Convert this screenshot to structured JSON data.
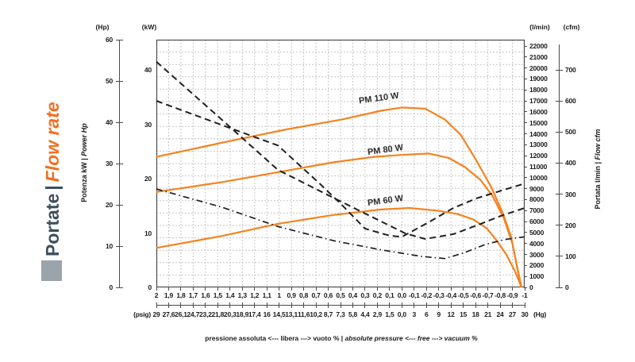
{
  "sidebar": {
    "title_it": "Portate",
    "separator": "|",
    "title_en": "Flow rate",
    "title_it_color": "#3E4F5C",
    "title_en_color": "#F26F21",
    "square_color": "#9CA4AB"
  },
  "axes": {
    "left_hp": {
      "header": "(Hp)",
      "labels": [
        "60",
        "50",
        "40",
        "30",
        "20",
        "10",
        "0"
      ]
    },
    "left_kw": {
      "header": "(kW)",
      "labels": [
        "40",
        "30",
        "20",
        "10",
        "0"
      ]
    },
    "right_lmin": {
      "header": "(l/min)",
      "labels": [
        "22000",
        "21000",
        "20000",
        "19000",
        "18000",
        "17000",
        "16000",
        "15000",
        "14000",
        "13000",
        "12000",
        "11000",
        "10000",
        "9000",
        "8000",
        "7000",
        "6000",
        "5000",
        "4000",
        "3000",
        "2000",
        "1000",
        "0"
      ]
    },
    "right_cfm": {
      "header": "(cfm)",
      "labels": [
        "700",
        "600",
        "500",
        "400",
        "300",
        "200",
        "100",
        "0"
      ]
    },
    "left_title": {
      "normal": "Potenza kW",
      "sep": " | ",
      "italic": "Power Hp"
    },
    "right_title": {
      "normal": "Portata l/min",
      "sep": " | ",
      "italic": "Flow cfm"
    },
    "x_row1_labels": [
      "2",
      "1,9",
      "1,8",
      "1,7",
      "1,6",
      "1,5",
      "1,4",
      "1,3",
      "1,2",
      "1,1",
      "1",
      "0,9",
      "0,8",
      "0,7",
      "0,6",
      "0,5",
      "0,4",
      "0,3",
      "0,2",
      "0,1",
      "0,0",
      "-0,1",
      "-0,2",
      "-0,3",
      "-0,4",
      "-0,5",
      "-0,6",
      "-0,7",
      "-0,8",
      "-0,9",
      "-1"
    ],
    "x_row2_labels": [
      "29",
      "27,6",
      "26,1",
      "24,7",
      "23,2",
      "21,8",
      "20,3",
      "18,9",
      "17,4",
      "16",
      "14,5",
      "13,1",
      "11,6",
      "10,2",
      "8,7",
      "7,3",
      "5,8",
      "4,4",
      "2,9",
      "1,5",
      "0,0",
      "3",
      "6",
      "9",
      "12",
      "15",
      "18",
      "21",
      "24",
      "27",
      "30"
    ],
    "x_row2_unit_left": "(psig)",
    "x_row2_unit_right": "(Hg)"
  },
  "caption": {
    "italian": "pressione assoluta <--- libera ---> vuoto %",
    "sep": " | ",
    "english": "absolute pressure <--- free ---> vacuum %"
  },
  "colors": {
    "orange": "#F5821F",
    "black_curve": "#1f1f1f",
    "grid": "#c6c6c6",
    "border": "#4a4a4a"
  },
  "chart_data": {
    "type": "line",
    "x_axis": {
      "range_bar": [
        2,
        -1
      ],
      "tick_step_bar": 0.1,
      "secondary_scale_psig": [
        29,
        -30
      ],
      "note_units_shown": [
        "(psig)",
        "(Hg)"
      ]
    },
    "y_axes": {
      "power_hp_range": [
        0,
        60
      ],
      "power_kw_range": [
        0,
        40
      ],
      "flow_lmin_range": [
        0,
        22000
      ],
      "flow_cfm_range": [
        0,
        700
      ]
    },
    "grid": {
      "shown": true,
      "style": "dashed"
    },
    "styles": {
      "flow": {
        "color": "#F5821F",
        "width": 2.2,
        "dash": ""
      },
      "power_dash": {
        "color": "#1f1f1f",
        "width": 2,
        "dash": "8 5"
      },
      "power_dashdot": {
        "color": "#1f1f1f",
        "width": 1.7,
        "dash": "8 4 1.5 4"
      }
    },
    "series": [
      {
        "id": "pm110-flow",
        "label": "PM 110 W",
        "axis": "flow",
        "style": "flow",
        "points": [
          [
            2,
            11900
          ],
          [
            1.46,
            13200
          ],
          [
            0.94,
            14400
          ],
          [
            0.49,
            15300
          ],
          [
            0.17,
            16100
          ],
          [
            0,
            16400
          ],
          [
            -0.19,
            16300
          ],
          [
            -0.35,
            15300
          ],
          [
            -0.48,
            13900
          ],
          [
            -0.61,
            11500
          ],
          [
            -0.73,
            9100
          ],
          [
            -0.82,
            6800
          ],
          [
            -0.89,
            4600
          ],
          [
            -0.93,
            2300
          ],
          [
            -0.97,
            0
          ]
        ]
      },
      {
        "id": "pm80-flow",
        "label": "PM 80 W",
        "axis": "flow",
        "style": "flow",
        "points": [
          [
            2,
            8700
          ],
          [
            1.46,
            9600
          ],
          [
            1.01,
            10500
          ],
          [
            0.56,
            11400
          ],
          [
            0.23,
            11900
          ],
          [
            -0.03,
            12100
          ],
          [
            -0.22,
            12200
          ],
          [
            -0.38,
            11800
          ],
          [
            -0.51,
            11000
          ],
          [
            -0.64,
            9800
          ],
          [
            -0.74,
            8300
          ],
          [
            -0.83,
            6300
          ],
          [
            -0.9,
            4000
          ],
          [
            -0.94,
            1800
          ],
          [
            -0.975,
            0
          ]
        ]
      },
      {
        "id": "pm60-flow",
        "label": "PM 60 W",
        "axis": "flow",
        "style": "flow",
        "points": [
          [
            2,
            3600
          ],
          [
            1.46,
            4700
          ],
          [
            1.01,
            5800
          ],
          [
            0.56,
            6600
          ],
          [
            0.17,
            7100
          ],
          [
            -0.06,
            7240
          ],
          [
            -0.29,
            7000
          ],
          [
            -0.45,
            6700
          ],
          [
            -0.58,
            6200
          ],
          [
            -0.69,
            5400
          ],
          [
            -0.77,
            4300
          ],
          [
            -0.85,
            3000
          ],
          [
            -0.92,
            1500
          ],
          [
            -0.975,
            0
          ]
        ]
      },
      {
        "id": "power-dashed-a",
        "label": "",
        "axis": "power",
        "style": "power_dash",
        "points": [
          [
            2,
            41.5
          ],
          [
            1.46,
            30.7
          ],
          [
            1.01,
            21.6
          ],
          [
            0.56,
            16.5
          ],
          [
            0.23,
            12.8
          ],
          [
            -0.03,
            9.9
          ],
          [
            -0.19,
            8.9
          ],
          [
            -0.42,
            9.8
          ],
          [
            -0.61,
            11.4
          ],
          [
            -0.8,
            13.1
          ],
          [
            -1,
            14.6
          ]
        ]
      },
      {
        "id": "power-dashed-b",
        "label": "",
        "axis": "power",
        "style": "power_dash",
        "points": [
          [
            2,
            34.3
          ],
          [
            1.46,
            29.8
          ],
          [
            1.01,
            26.1
          ],
          [
            0.68,
            19.3
          ],
          [
            0.49,
            15.2
          ],
          [
            0.3,
            10.8
          ],
          [
            0.1,
            9.5
          ],
          [
            0,
            9.3
          ],
          [
            -0.22,
            12
          ],
          [
            -0.42,
            14.6
          ],
          [
            -0.61,
            16.4
          ],
          [
            -0.81,
            17.8
          ],
          [
            -1,
            19.1
          ]
        ]
      },
      {
        "id": "power-dashdot-c",
        "label": "",
        "axis": "power",
        "style": "power_dashdot",
        "points": [
          [
            2,
            18.1
          ],
          [
            1.46,
            14.7
          ],
          [
            1.01,
            11.2
          ],
          [
            0.56,
            8.6
          ],
          [
            0.17,
            6.9
          ],
          [
            -0.16,
            5.7
          ],
          [
            -0.35,
            5.3
          ],
          [
            -0.51,
            6.4
          ],
          [
            -0.68,
            7.9
          ],
          [
            -0.84,
            8.8
          ],
          [
            -1,
            9.3
          ]
        ]
      }
    ]
  }
}
